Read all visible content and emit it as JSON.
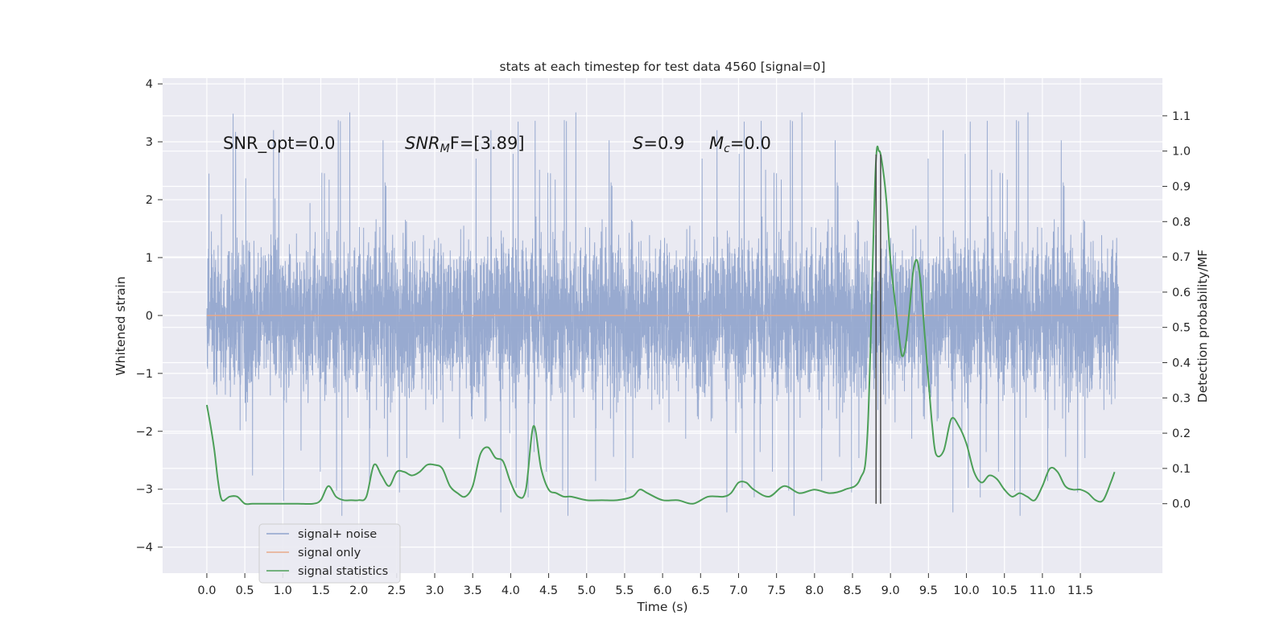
{
  "chart_data": {
    "type": "line",
    "title": "stats at each timestep for test data 4560 [signal=0]",
    "xlabel": "Time (s)",
    "ylabel_left": "Whitened strain",
    "ylabel_right": "Detection probability/MF",
    "xlim": [
      -0.5822,
      12.58
    ],
    "ylim_left": [
      -4.45,
      4.1
    ],
    "ylim_right": [
      -0.197,
      1.207
    ],
    "x_ticks": [
      "0.0",
      "0.5",
      "1.0",
      "1.5",
      "2.0",
      "2.5",
      "3.0",
      "3.5",
      "4.0",
      "4.5",
      "5.0",
      "5.5",
      "6.0",
      "6.5",
      "7.0",
      "7.5",
      "8.0",
      "8.5",
      "9.0",
      "9.5",
      "10.0",
      "10.5",
      "11.0",
      "11.5"
    ],
    "y_ticks_left": [
      "4",
      "3",
      "2",
      "1",
      "0",
      "−1",
      "−2",
      "−3",
      "−4"
    ],
    "y_ticks_right": [
      "1.1",
      "1.0",
      "0.9",
      "0.8",
      "0.7",
      "0.6",
      "0.5",
      "0.4",
      "0.3",
      "0.2",
      "0.1",
      "0.0"
    ],
    "grid": true,
    "legend_position": "lower-left",
    "series": [
      {
        "name": "signal+ noise",
        "axis": "left",
        "color": "#8fa3cc",
        "kind": "noise",
        "x_range": [
          0.0,
          12.0
        ],
        "amplitude_range": [
          -3.5,
          3.7
        ],
        "note_values": "dense random noise, baseline spread about ±1.7"
      },
      {
        "name": "signal only",
        "axis": "left",
        "color": "#e8a98a",
        "x": [
          0.0,
          12.0
        ],
        "y": [
          0.0,
          0.0
        ]
      },
      {
        "name": "signal statistics",
        "axis": "right",
        "color": "#4c9f58",
        "x": [
          0.0,
          0.05,
          0.1,
          0.15,
          0.2,
          0.3,
          0.4,
          0.5,
          0.6,
          0.8,
          1.0,
          1.2,
          1.4,
          1.5,
          1.6,
          1.7,
          1.8,
          1.9,
          2.0,
          2.1,
          2.2,
          2.3,
          2.4,
          2.5,
          2.6,
          2.7,
          2.8,
          2.9,
          3.0,
          3.1,
          3.2,
          3.3,
          3.4,
          3.5,
          3.6,
          3.7,
          3.8,
          3.9,
          4.0,
          4.1,
          4.2,
          4.3,
          4.4,
          4.5,
          4.6,
          4.7,
          4.8,
          5.0,
          5.2,
          5.4,
          5.6,
          5.7,
          5.8,
          6.0,
          6.2,
          6.4,
          6.6,
          6.8,
          6.9,
          7.0,
          7.1,
          7.2,
          7.4,
          7.6,
          7.8,
          8.0,
          8.2,
          8.4,
          8.6,
          8.7,
          8.8,
          8.85,
          8.9,
          8.95,
          9.0,
          9.1,
          9.15,
          9.2,
          9.25,
          9.3,
          9.35,
          9.4,
          9.45,
          9.5,
          9.55,
          9.6,
          9.7,
          9.8,
          9.9,
          10.0,
          10.1,
          10.2,
          10.3,
          10.4,
          10.5,
          10.6,
          10.7,
          10.8,
          10.9,
          11.0,
          11.1,
          11.2,
          11.3,
          11.4,
          11.5,
          11.6,
          11.7,
          11.8,
          11.9,
          11.95
        ],
        "y": [
          0.28,
          0.22,
          0.15,
          0.06,
          0.01,
          0.02,
          0.02,
          0.0,
          0.0,
          0.0,
          0.0,
          0.0,
          0.0,
          0.01,
          0.05,
          0.02,
          0.01,
          0.01,
          0.01,
          0.02,
          0.11,
          0.08,
          0.05,
          0.09,
          0.09,
          0.08,
          0.09,
          0.11,
          0.11,
          0.1,
          0.05,
          0.03,
          0.02,
          0.05,
          0.14,
          0.16,
          0.13,
          0.12,
          0.06,
          0.02,
          0.04,
          0.22,
          0.1,
          0.04,
          0.03,
          0.02,
          0.02,
          0.01,
          0.01,
          0.01,
          0.02,
          0.04,
          0.03,
          0.01,
          0.01,
          0.0,
          0.02,
          0.02,
          0.03,
          0.06,
          0.06,
          0.04,
          0.02,
          0.05,
          0.03,
          0.04,
          0.03,
          0.04,
          0.07,
          0.21,
          0.93,
          1.0,
          0.95,
          0.85,
          0.69,
          0.5,
          0.42,
          0.45,
          0.55,
          0.66,
          0.69,
          0.62,
          0.48,
          0.35,
          0.22,
          0.14,
          0.15,
          0.24,
          0.22,
          0.17,
          0.09,
          0.06,
          0.08,
          0.07,
          0.04,
          0.02,
          0.03,
          0.02,
          0.01,
          0.05,
          0.1,
          0.09,
          0.05,
          0.04,
          0.04,
          0.03,
          0.01,
          0.01,
          0.06,
          0.09
        ]
      }
    ],
    "vertical_lines": [
      {
        "x": 8.81,
        "y_top": 0.99,
        "color": "#4a4a4a"
      },
      {
        "x": 8.87,
        "y_top": 0.99,
        "color": "#4a4a4a"
      }
    ],
    "annotations": [
      {
        "id": "snr_opt",
        "text": "SNR_opt=0.0",
        "x": 0.2,
        "y": 3.0
      },
      {
        "id": "snr_mf",
        "label": "SNR",
        "sub": "M",
        "after": "F=[3.89]",
        "x": 2.6,
        "y": 3.0
      },
      {
        "id": "s_stat",
        "label": "S",
        "after": "=0.9",
        "x": 5.6,
        "y": 3.0
      },
      {
        "id": "mc_stat",
        "label": "M",
        "sub": "c",
        "after": "=0.0",
        "x": 6.6,
        "y": 3.0
      }
    ]
  }
}
